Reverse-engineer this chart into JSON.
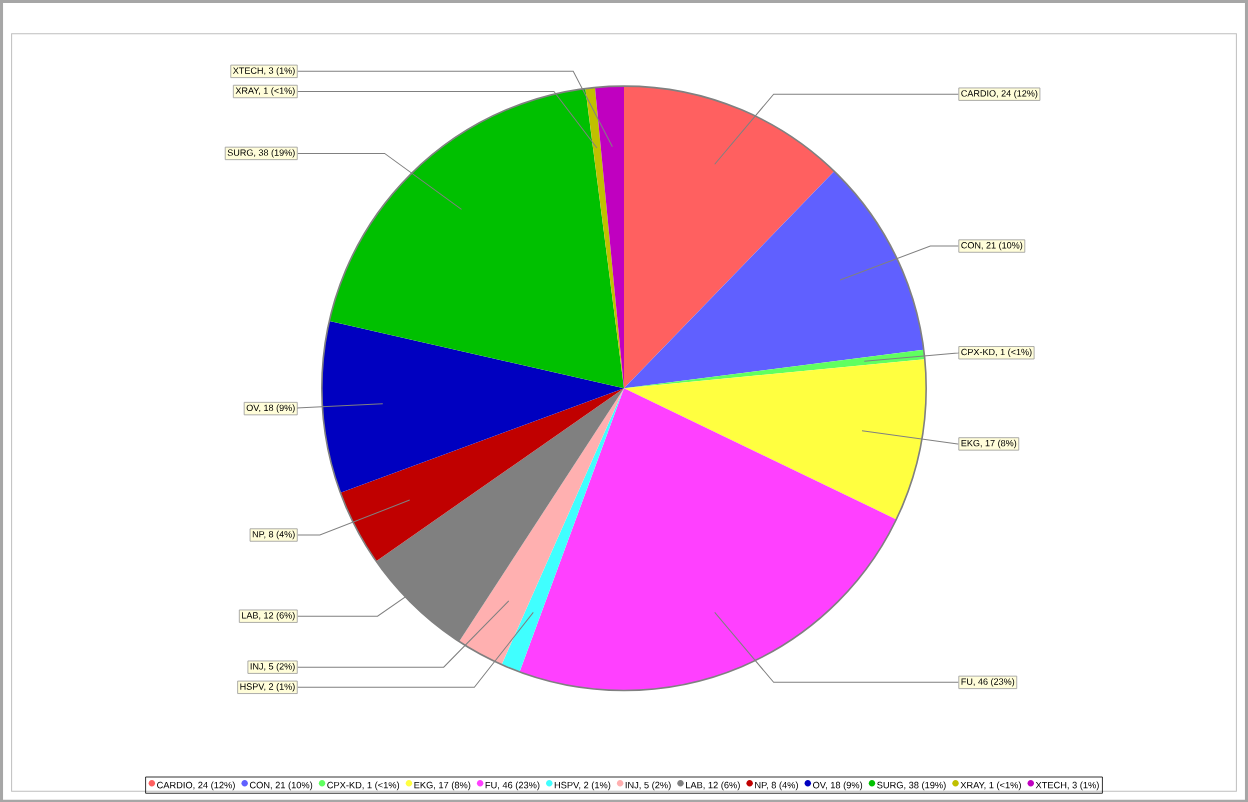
{
  "chart_data": {
    "type": "pie",
    "categories": [
      "CARDIO, 24 (12%)",
      "CON, 21 (10%)",
      "CPX-KD, 1 (<1%)",
      "EKG, 17 (8%)",
      "FU, 46 (23%)",
      "HSPV, 2 (1%)",
      "INJ, 5 (2%)",
      "LAB, 12 (6%)",
      "NP, 8 (4%)",
      "OV, 18 (9%)",
      "SURG, 38 (19%)",
      "XRAY, 1 (<1%)",
      "XTECH, 3 (1%)"
    ],
    "values": [
      24,
      21,
      1,
      17,
      46,
      2,
      5,
      12,
      8,
      18,
      38,
      1,
      3
    ],
    "colors": [
      "#ff6060",
      "#6060ff",
      "#60ff60",
      "#ffff40",
      "#ff40ff",
      "#40ffff",
      "#ffb0b0",
      "#808080",
      "#c00000",
      "#0000c0",
      "#00c000",
      "#c0c000",
      "#c000c0"
    ],
    "legend": "bottom"
  }
}
